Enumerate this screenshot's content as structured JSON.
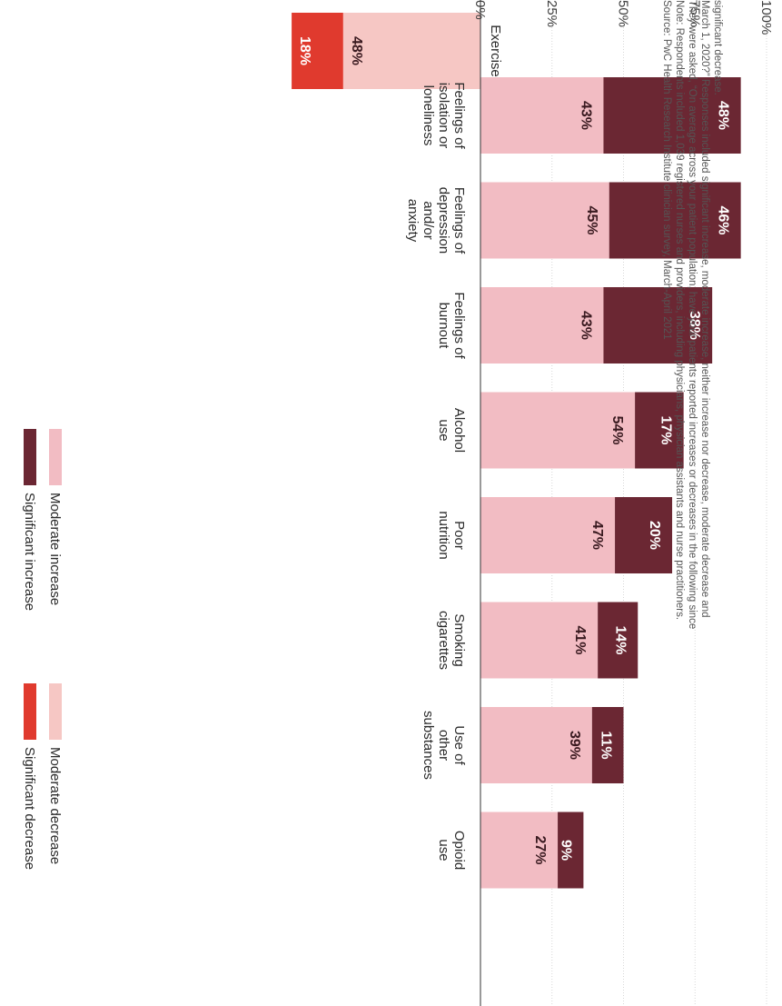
{
  "chart_data": [
    {
      "type": "bar",
      "stacked": true,
      "orientation": "vertical (figure printed rotated 90° clockwise)",
      "categories": [
        "Feelings of isolation or loneliness",
        "Feelings of depression and/or anxiety",
        "Feelings of burnout",
        "Alcohol use",
        "Poor nutrition",
        "Smoking cigarettes",
        "Use of other substances",
        "Opioid use"
      ],
      "category_lines": [
        [
          "Feelings of",
          "isolation or",
          "loneliness"
        ],
        [
          "Feelings of",
          "depression",
          "and/or",
          "anxiety"
        ],
        [
          "Feelings of",
          "burnout"
        ],
        [
          "Alcohol",
          "use"
        ],
        [
          "Poor",
          "nutrition"
        ],
        [
          "Smoking",
          "cigarettes"
        ],
        [
          "Use of",
          "other",
          "substances"
        ],
        [
          "Opioid",
          "use"
        ]
      ],
      "series": [
        {
          "name": "Moderate increase",
          "color": "#f2bcc3",
          "values": [
            43,
            45,
            43,
            54,
            47,
            41,
            39,
            27
          ],
          "labels": [
            "43%",
            "45%",
            "43%",
            "54%",
            "47%",
            "41%",
            "39%",
            "27%"
          ]
        },
        {
          "name": "Significant increase",
          "color": "#6b2733",
          "values": [
            48,
            46,
            38,
            17,
            20,
            14,
            11,
            9
          ],
          "labels": [
            "48%",
            "46%",
            "38%",
            "17%",
            "20%",
            "14%",
            "11%",
            "9%"
          ]
        }
      ],
      "ylim": [
        0,
        100
      ],
      "yticks": [
        "0%",
        "25%",
        "50%",
        "75%",
        "100%"
      ],
      "grid": true
    },
    {
      "type": "bar",
      "stacked": true,
      "categories": [
        "Exercise"
      ],
      "series": [
        {
          "name": "Moderate decrease",
          "color": "#f6c7c4",
          "values": [
            48
          ],
          "labels": [
            "48%"
          ]
        },
        {
          "name": "Significant decrease",
          "color": "#e03a2e",
          "values": [
            18
          ],
          "labels": [
            "18%"
          ]
        }
      ]
    }
  ],
  "legend": {
    "increase": [
      {
        "label": "Significant increase",
        "color": "#6b2733"
      },
      {
        "label": "Moderate increase",
        "color": "#f2bcc3"
      }
    ],
    "decrease": [
      {
        "label": "Significant decrease",
        "color": "#e03a2e"
      },
      {
        "label": "Moderate decrease",
        "color": "#f6c7c4"
      }
    ]
  },
  "notes": [
    "Source: PwC Health Research Institute clinician survey, March-April 2021",
    "Note: Respondents included 1,039 registered nurses and providers, including physicians, physician assistants and nurse practitioners.",
    "They were asked, “On average across your patient population, have your patients reported increases or decreases in the following since",
    "March 1, 2020?” Responses included significant increase, moderate increase, neither increase nor decrease, moderate decrease and",
    "significant decrease."
  ]
}
